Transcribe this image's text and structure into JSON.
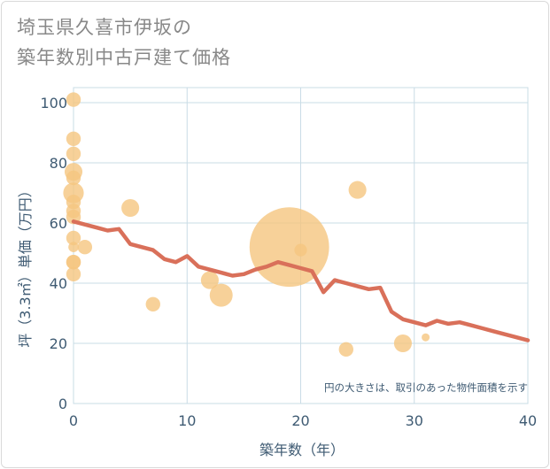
{
  "title_lines": [
    "埼玉県久喜市伊坂の",
    "築年数別中古戸建て価格"
  ],
  "colors": {
    "bubble": "#f5c57f",
    "line": "#d9705a",
    "grid": "#c9dce6",
    "tick_text": "#3f5b73"
  },
  "chart_data": {
    "type": "scatter",
    "title": "埼玉県久喜市伊坂の築年数別中古戸建て価格",
    "xlabel": "築年数（年）",
    "ylabel": "坪（3.3㎡）単価（万円）",
    "xlim": [
      0,
      40
    ],
    "ylim": [
      0,
      105
    ],
    "xticks": [
      0,
      10,
      20,
      30,
      40
    ],
    "yticks": [
      0,
      20,
      40,
      60,
      80,
      100
    ],
    "note": "円の大きさは、取引のあった物件面積を示す",
    "bubbles": [
      {
        "x": 0,
        "y": 101,
        "size": 2
      },
      {
        "x": 0,
        "y": 88,
        "size": 2
      },
      {
        "x": 0,
        "y": 83,
        "size": 2
      },
      {
        "x": 0,
        "y": 77,
        "size": 3
      },
      {
        "x": 0,
        "y": 75,
        "size": 2
      },
      {
        "x": 0,
        "y": 70,
        "size": 4
      },
      {
        "x": 0,
        "y": 67,
        "size": 2
      },
      {
        "x": 0,
        "y": 64,
        "size": 2
      },
      {
        "x": 0,
        "y": 62,
        "size": 2
      },
      {
        "x": 0,
        "y": 55,
        "size": 2
      },
      {
        "x": 0,
        "y": 52,
        "size": 1
      },
      {
        "x": 0,
        "y": 47,
        "size": 2
      },
      {
        "x": 0,
        "y": 47,
        "size": 2
      },
      {
        "x": 0,
        "y": 43,
        "size": 2
      },
      {
        "x": 1,
        "y": 52,
        "size": 2
      },
      {
        "x": 5,
        "y": 65,
        "size": 3
      },
      {
        "x": 7,
        "y": 33,
        "size": 2
      },
      {
        "x": 12,
        "y": 41,
        "size": 3
      },
      {
        "x": 13,
        "y": 36,
        "size": 5
      },
      {
        "x": 19,
        "y": 52,
        "size": 60
      },
      {
        "x": 20,
        "y": 51,
        "size": 1.5
      },
      {
        "x": 24,
        "y": 18,
        "size": 2
      },
      {
        "x": 25,
        "y": 71,
        "size": 3
      },
      {
        "x": 29,
        "y": 20,
        "size": 3
      },
      {
        "x": 31,
        "y": 22,
        "size": 0.6
      }
    ],
    "series": [
      {
        "name": "trend",
        "x": [
          0,
          1,
          2,
          3,
          4,
          5,
          6,
          7,
          8,
          9,
          10,
          11,
          12,
          13,
          14,
          15,
          16,
          17,
          18,
          19,
          20,
          21,
          22,
          23,
          24,
          25,
          26,
          27,
          28,
          29,
          30,
          31,
          32,
          33,
          34,
          35,
          36,
          37,
          38,
          39,
          40
        ],
        "y": [
          60.5,
          59.5,
          58.5,
          57.5,
          58,
          53,
          52,
          51,
          48,
          47,
          49,
          45.5,
          44.5,
          43.5,
          42.5,
          43,
          44.5,
          45.5,
          47,
          46,
          45,
          44,
          37,
          41,
          40,
          39,
          38,
          38.5,
          30.5,
          28,
          27,
          26,
          27.5,
          26.5,
          27,
          26,
          25,
          24,
          23,
          22,
          21
        ]
      }
    ]
  }
}
